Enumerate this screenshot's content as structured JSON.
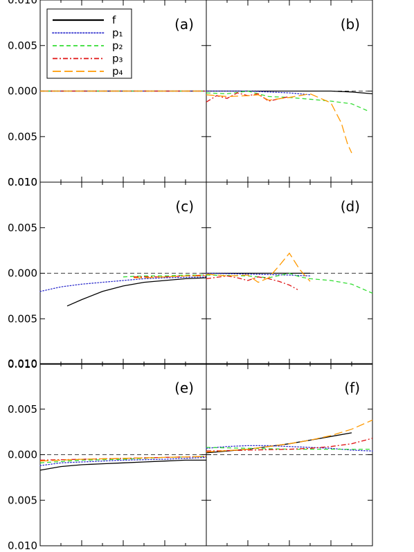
{
  "chart_data": {
    "type": "line",
    "y_ticks": [
      "0.010",
      "0.005",
      "0.000",
      "0.005",
      "0.010"
    ],
    "y_tick_values": [
      0.01,
      0.005,
      0.0,
      -0.005,
      -0.01
    ],
    "ylim": [
      -0.01,
      0.01
    ],
    "xlim": [
      0,
      8
    ],
    "reference_line": 0,
    "legend": {
      "placement": "top-left of panel (a)",
      "entries": [
        {
          "key": "f",
          "label": "f",
          "color": "#000000",
          "dash": "solid"
        },
        {
          "key": "p1",
          "label": "p₁",
          "color": "#2b2bcc",
          "dash": "dotted"
        },
        {
          "key": "p2",
          "label": "p₂",
          "color": "#33dd33",
          "dash": "dashed"
        },
        {
          "key": "p3",
          "label": "p₃",
          "color": "#e01010",
          "dash": "dashdot"
        },
        {
          "key": "p4",
          "label": "p₄",
          "color": "#ff9900",
          "dash": "longdash"
        }
      ]
    },
    "panels": [
      {
        "label": "(a)",
        "row": 0,
        "col": 0,
        "series": [
          {
            "name": "f",
            "points": [
              [
                0,
                0
              ],
              [
                8,
                0
              ]
            ]
          },
          {
            "name": "p1",
            "points": [
              [
                0,
                0
              ],
              [
                8,
                0
              ]
            ]
          },
          {
            "name": "p2",
            "points": [
              [
                0,
                0
              ],
              [
                8,
                0
              ]
            ]
          },
          {
            "name": "p3",
            "points": [
              [
                0,
                0
              ],
              [
                8,
                0
              ]
            ]
          },
          {
            "name": "p4",
            "points": [
              [
                0,
                0
              ],
              [
                8,
                0
              ]
            ]
          }
        ]
      },
      {
        "label": "(b)",
        "row": 0,
        "col": 1,
        "series": [
          {
            "name": "f",
            "points": [
              [
                0,
                0
              ],
              [
                2,
                0
              ],
              [
                4,
                0
              ],
              [
                6,
                0
              ],
              [
                7,
                -0.0001
              ],
              [
                8,
                -0.0003
              ]
            ]
          },
          {
            "name": "p1",
            "points": [
              [
                0,
                0
              ],
              [
                2,
                0
              ],
              [
                4,
                -0.0002
              ],
              [
                5,
                -0.0004
              ]
            ]
          },
          {
            "name": "p2",
            "points": [
              [
                0,
                -0.0002
              ],
              [
                1,
                -0.0003
              ],
              [
                2,
                0
              ],
              [
                3,
                -0.0006
              ],
              [
                4,
                -0.0007
              ],
              [
                5,
                -0.0009
              ],
              [
                6,
                -0.0011
              ],
              [
                7,
                -0.0014
              ],
              [
                7.8,
                -0.0022
              ]
            ]
          },
          {
            "name": "p3",
            "points": [
              [
                0,
                -0.0012
              ],
              [
                0.5,
                -0.0005
              ],
              [
                1,
                -0.0008
              ],
              [
                1.5,
                -0.0002
              ],
              [
                2,
                -0.0005
              ],
              [
                2.5,
                -0.0003
              ],
              [
                3,
                -0.0011
              ],
              [
                4,
                -0.0006
              ]
            ]
          },
          {
            "name": "p4",
            "points": [
              [
                0,
                -0.0004
              ],
              [
                1,
                -0.0006
              ],
              [
                2,
                -0.0005
              ],
              [
                2.5,
                -0.0004
              ],
              [
                3,
                -0.001
              ],
              [
                4,
                -0.0007
              ],
              [
                5,
                -0.0003
              ],
              [
                6,
                -0.0013
              ],
              [
                6.5,
                -0.0035
              ],
              [
                6.8,
                -0.0058
              ],
              [
                7,
                -0.0068
              ]
            ]
          }
        ]
      },
      {
        "label": "(c)",
        "row": 1,
        "col": 0,
        "series": [
          {
            "name": "f",
            "points": [
              [
                1.3,
                -0.0036
              ],
              [
                2,
                -0.0029
              ],
              [
                3,
                -0.002
              ],
              [
                4,
                -0.0014
              ],
              [
                5,
                -0.001
              ],
              [
                6,
                -0.0008
              ],
              [
                7,
                -0.0006
              ],
              [
                8,
                -0.0005
              ]
            ]
          },
          {
            "name": "p1",
            "points": [
              [
                0,
                -0.002
              ],
              [
                1,
                -0.0015
              ],
              [
                2,
                -0.0012
              ],
              [
                3,
                -0.001
              ],
              [
                4,
                -0.0008
              ],
              [
                5,
                -0.0006
              ],
              [
                6,
                -0.0005
              ],
              [
                8,
                -0.0004
              ]
            ]
          },
          {
            "name": "p2",
            "points": [
              [
                4,
                -0.0004
              ],
              [
                5,
                -0.0003
              ],
              [
                6,
                -0.0003
              ],
              [
                7,
                -0.0002
              ],
              [
                8,
                -0.0002
              ]
            ]
          },
          {
            "name": "p3",
            "points": [
              [
                4.5,
                -0.0004
              ],
              [
                5,
                -0.0004
              ],
              [
                6,
                -0.0004
              ],
              [
                7,
                -0.0003
              ],
              [
                8,
                -0.0002
              ]
            ]
          },
          {
            "name": "p4",
            "points": [
              [
                4.5,
                -0.0005
              ],
              [
                5,
                -0.0005
              ],
              [
                6,
                -0.0004
              ],
              [
                7,
                -0.0003
              ],
              [
                8,
                -0.0003
              ]
            ]
          }
        ]
      },
      {
        "label": "(d)",
        "row": 1,
        "col": 1,
        "series": [
          {
            "name": "f",
            "points": [
              [
                0,
                0
              ],
              [
                2,
                0
              ],
              [
                4,
                0
              ],
              [
                5,
                0
              ]
            ]
          },
          {
            "name": "p1",
            "points": [
              [
                0,
                0
              ],
              [
                2,
                -0.0001
              ],
              [
                4,
                -0.0002
              ],
              [
                5,
                -0.0003
              ]
            ]
          },
          {
            "name": "p2",
            "points": [
              [
                0,
                -0.0002
              ],
              [
                2,
                -0.0003
              ],
              [
                3,
                -0.0005
              ],
              [
                4,
                0
              ],
              [
                4.5,
                -0.0004
              ],
              [
                5,
                -0.0006
              ],
              [
                6,
                -0.0008
              ],
              [
                7,
                -0.0012
              ],
              [
                8,
                -0.0022
              ]
            ]
          },
          {
            "name": "p3",
            "points": [
              [
                0,
                -0.0006
              ],
              [
                1,
                -0.0003
              ],
              [
                1.5,
                -0.0005
              ],
              [
                2,
                -0.0008
              ],
              [
                2.5,
                -0.0004
              ],
              [
                3,
                -0.0006
              ],
              [
                3.5,
                -0.0009
              ],
              [
                4,
                -0.0013
              ],
              [
                4.4,
                -0.0018
              ]
            ]
          },
          {
            "name": "p4",
            "points": [
              [
                0,
                -0.0001
              ],
              [
                1,
                -0.0003
              ],
              [
                2,
                -0.0002
              ],
              [
                2.5,
                -0.001
              ],
              [
                3,
                -0.0005
              ],
              [
                3.5,
                0.0008
              ],
              [
                4,
                0.0022
              ],
              [
                4.5,
                0.0004
              ],
              [
                5,
                -0.0009
              ]
            ]
          }
        ]
      },
      {
        "label": "(e)",
        "row": 2,
        "col": 0,
        "series": [
          {
            "name": "f",
            "points": [
              [
                0,
                -0.0017
              ],
              [
                1,
                -0.0013
              ],
              [
                2,
                -0.0011
              ],
              [
                3,
                -0.001
              ],
              [
                4,
                -0.0009
              ],
              [
                5,
                -0.0008
              ],
              [
                6,
                -0.0007
              ],
              [
                7,
                -0.0006
              ],
              [
                8,
                -0.0006
              ]
            ]
          },
          {
            "name": "p1",
            "points": [
              [
                0,
                -0.0012
              ],
              [
                1,
                -0.0009
              ],
              [
                2,
                -0.0008
              ],
              [
                4,
                -0.0006
              ],
              [
                6,
                -0.0005
              ],
              [
                8,
                -0.0003
              ]
            ]
          },
          {
            "name": "p2",
            "points": [
              [
                0,
                -0.0009
              ],
              [
                2,
                -0.0006
              ],
              [
                4,
                -0.0005
              ],
              [
                6,
                -0.0003
              ],
              [
                8,
                -0.0002
              ]
            ]
          },
          {
            "name": "p3",
            "points": [
              [
                0,
                -0.0006
              ],
              [
                2,
                -0.0005
              ],
              [
                4,
                -0.0004
              ],
              [
                6,
                -0.0003
              ],
              [
                8,
                -0.0002
              ]
            ]
          },
          {
            "name": "p4",
            "points": [
              [
                0,
                -0.0007
              ],
              [
                2,
                -0.0005
              ],
              [
                4,
                -0.0004
              ],
              [
                6,
                -0.0003
              ],
              [
                8,
                -0.0002
              ]
            ]
          }
        ]
      },
      {
        "label": "(f)",
        "row": 2,
        "col": 1,
        "series": [
          {
            "name": "f",
            "points": [
              [
                0,
                0.0002
              ],
              [
                1,
                0.0004
              ],
              [
                2,
                0.0006
              ],
              [
                3,
                0.0009
              ],
              [
                4,
                0.0012
              ],
              [
                5,
                0.0016
              ],
              [
                6,
                0.002
              ],
              [
                7,
                0.0024
              ]
            ]
          },
          {
            "name": "p1",
            "points": [
              [
                0,
                0.0007
              ],
              [
                1,
                0.0009
              ],
              [
                2,
                0.001
              ],
              [
                3,
                0.001
              ],
              [
                4,
                0.0009
              ],
              [
                5,
                0.0008
              ],
              [
                6,
                0.0007
              ],
              [
                7,
                0.0005
              ],
              [
                8,
                0.0004
              ]
            ]
          },
          {
            "name": "p2",
            "points": [
              [
                0,
                0.0008
              ],
              [
                2,
                0.0007
              ],
              [
                4,
                0.0006
              ],
              [
                6,
                0.0006
              ],
              [
                8,
                0.0006
              ]
            ]
          },
          {
            "name": "p3",
            "points": [
              [
                0,
                0.0004
              ],
              [
                2,
                0.0005
              ],
              [
                4,
                0.0006
              ],
              [
                5,
                0.0007
              ],
              [
                6,
                0.0009
              ],
              [
                7,
                0.0012
              ],
              [
                8,
                0.0018
              ]
            ]
          },
          {
            "name": "p4",
            "points": [
              [
                0,
                0.0003
              ],
              [
                2,
                0.0006
              ],
              [
                3,
                0.0009
              ],
              [
                4,
                0.0012
              ],
              [
                5,
                0.0016
              ],
              [
                6,
                0.0021
              ],
              [
                7,
                0.0028
              ],
              [
                8,
                0.0038
              ]
            ]
          }
        ]
      }
    ]
  }
}
